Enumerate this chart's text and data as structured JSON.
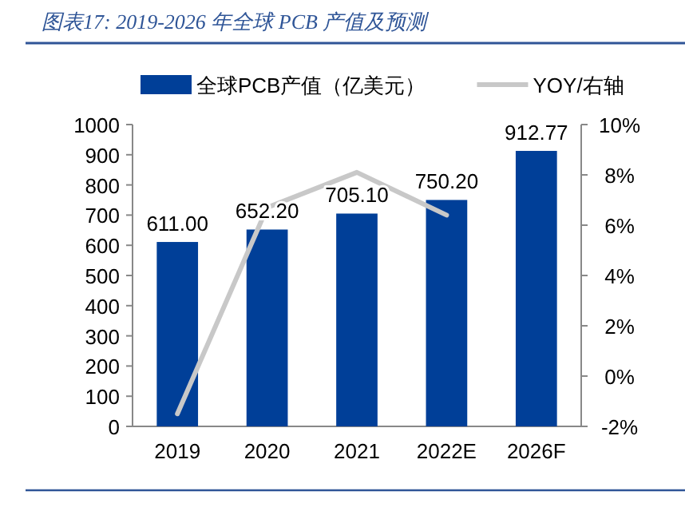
{
  "chart_data": {
    "type": "bar",
    "title": "图表17: 2019-2026 年全球 PCB 产值及预测",
    "categories": [
      "2019",
      "2020",
      "2021",
      "2022E",
      "2026F"
    ],
    "series": [
      {
        "name": "全球PCB产值（亿美元）",
        "color": "#003f98",
        "values": [
          611.0,
          652.2,
          705.1,
          750.2,
          912.77
        ],
        "value_labels": [
          "611.00",
          "652.20",
          "705.10",
          "750.20",
          "912.77"
        ]
      },
      {
        "name": "YOY/右轴",
        "type": "line",
        "axis": "y2",
        "color": "#c8c8c8",
        "values": [
          -1.5,
          6.7,
          8.1,
          6.4,
          null
        ]
      }
    ],
    "ylim": [
      0,
      1000
    ],
    "yticks": [
      0,
      100,
      200,
      300,
      400,
      500,
      600,
      700,
      800,
      900,
      1000
    ],
    "y2lim": [
      -2,
      10
    ],
    "y2ticks": [
      {
        "value": -2,
        "label": "-2%"
      },
      {
        "value": 0,
        "label": "0%"
      },
      {
        "value": 2,
        "label": "2%"
      },
      {
        "value": 4,
        "label": "4%"
      },
      {
        "value": 6,
        "label": "6%"
      },
      {
        "value": 8,
        "label": "8%"
      },
      {
        "value": 10,
        "label": "10%"
      }
    ],
    "legend": "top",
    "grid": false
  }
}
